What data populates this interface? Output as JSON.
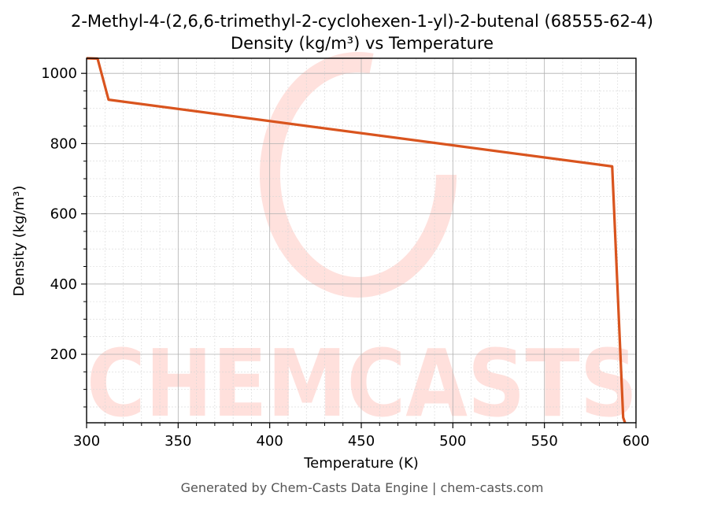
{
  "footer": "Generated by Chem-Casts Data Engine | chem-casts.com",
  "watermark": {
    "text": "CHEMCASTS",
    "color": "#ff6b57"
  },
  "chart_data": {
    "type": "line",
    "title_line1": "2-Methyl-4-(2,6,6-trimethyl-2-cyclohexen-1-yl)-2-butenal (68555-62-4)",
    "title_line2": "Density (kg/m³) vs Temperature",
    "xlabel": "Temperature (K)",
    "ylabel": "Density (kg/m³)",
    "xlim": [
      300,
      600
    ],
    "ylim": [
      5,
      1043
    ],
    "xticks": [
      300,
      350,
      400,
      450,
      500,
      550,
      600
    ],
    "yticks": [
      200,
      400,
      600,
      800,
      1000
    ],
    "grid": true,
    "line_color": "#d9541e",
    "series": [
      {
        "x": [
          300,
          306,
          312,
          587,
          593,
          594
        ],
        "y": [
          1043,
          1042,
          925,
          735,
          20,
          5
        ]
      }
    ]
  }
}
